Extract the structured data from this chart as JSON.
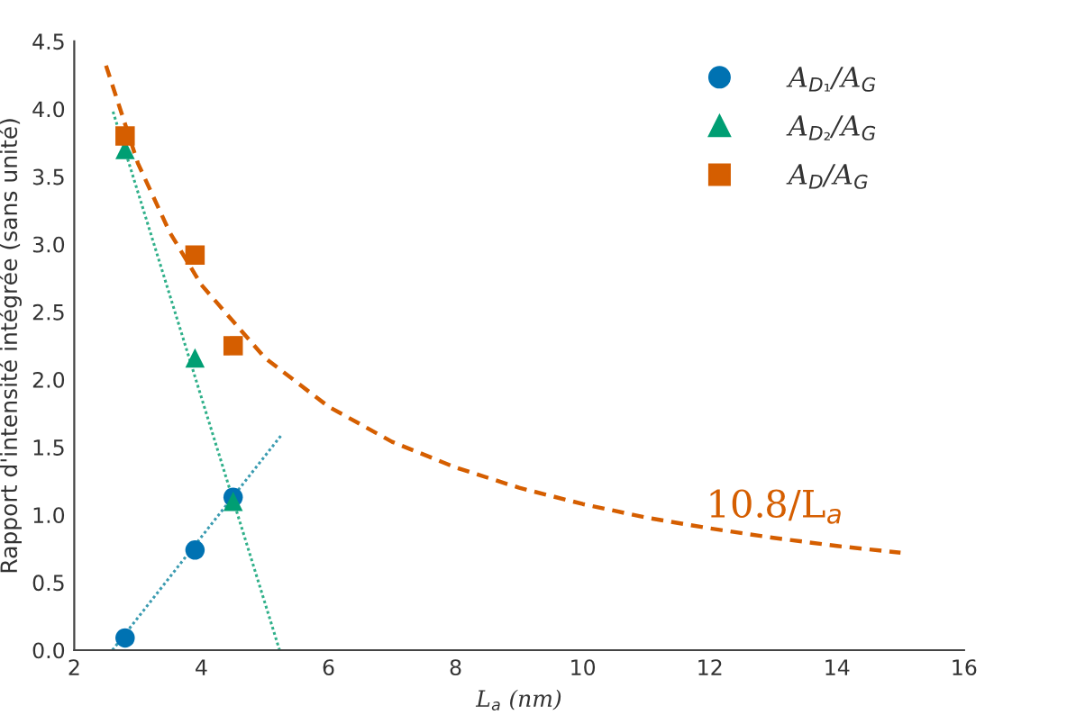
{
  "chart_data": {
    "type": "scatter",
    "xlabel": "L$_{a}$ (nm)",
    "ylabel": "Rapport d'intensité intégrée (sans unité)",
    "xlim": [
      2,
      16
    ],
    "xticks": [
      2,
      4,
      6,
      8,
      10,
      12,
      14,
      16
    ],
    "ylim": [
      0,
      4.5
    ],
    "yticks": [
      {
        "value": 0,
        "label": "0.0"
      },
      0.5,
      {
        "value": 1,
        "label": "1.0"
      },
      1.5,
      {
        "value": 2,
        "label": "2.0"
      },
      2.5,
      {
        "value": 3,
        "label": "3.0"
      },
      3.5,
      {
        "value": 4,
        "label": "4.0"
      },
      4.5
    ],
    "grid": false,
    "legend": "top right",
    "series": [
      {
        "name": "A$_{D₁}$/A$_{G}$",
        "marker": "circle",
        "color": "#0072b2",
        "x": [
          2.8,
          3.9,
          4.5
        ],
        "values": [
          0.09,
          0.74,
          1.13
        ]
      },
      {
        "name": "A$_{D₂}$/A$_{G}$",
        "marker": "triangle",
        "color": "#009e73",
        "x": [
          2.8,
          3.9,
          4.5
        ],
        "values": [
          3.7,
          2.16,
          1.1
        ]
      },
      {
        "name": "A$_{D}$/A$_{G}$",
        "marker": "square",
        "color": "#d55e00",
        "x": [
          2.8,
          3.9,
          4.5
        ],
        "values": [
          3.8,
          2.92,
          2.25
        ]
      },
      {
        "type": "line",
        "line_style": "dotted",
        "color": "#3a9bb0",
        "x": [
          2.6,
          5.26
        ],
        "values": [
          0.0,
          1.59
        ]
      },
      {
        "type": "line",
        "line_style": "dotted",
        "color": "#30b08a",
        "x": [
          2.61,
          5.23
        ],
        "values": [
          3.98,
          0.0
        ]
      },
      {
        "type": "line",
        "line_style": "dashed",
        "color": "#d55e00",
        "x": [
          2.5,
          3,
          3.5,
          4,
          5,
          6,
          7,
          8,
          9,
          10,
          11,
          12,
          13,
          14,
          15
        ],
        "values": [
          4.32,
          3.6,
          3.09,
          2.7,
          2.16,
          1.8,
          1.54,
          1.35,
          1.2,
          1.08,
          0.98,
          0.9,
          0.83,
          0.77,
          0.72
        ]
      }
    ],
    "annotations": [
      "10.8/L$_{a}$"
    ]
  }
}
